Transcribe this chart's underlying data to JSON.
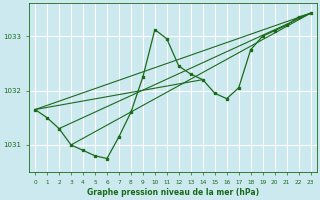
{
  "title": "Graphe pression niveau de la mer (hPa)",
  "bg_color": "#cce9f0",
  "grid_color": "#ffffff",
  "line_color": "#1a6b1a",
  "xlim": [
    -0.5,
    23.5
  ],
  "ylim": [
    1030.5,
    1033.6
  ],
  "yticks": [
    1031,
    1032,
    1033
  ],
  "xticks": [
    0,
    1,
    2,
    3,
    4,
    5,
    6,
    7,
    8,
    9,
    10,
    11,
    12,
    13,
    14,
    15,
    16,
    17,
    18,
    19,
    20,
    21,
    22,
    23
  ],
  "series1_x": [
    0,
    1,
    2,
    3,
    4,
    5,
    6,
    7,
    8,
    9,
    10,
    11,
    12,
    13,
    14,
    15,
    16,
    17,
    18,
    19,
    20,
    21,
    22,
    23
  ],
  "series1_y": [
    1031.65,
    1031.5,
    1031.3,
    1031.0,
    1030.9,
    1030.8,
    1030.75,
    1031.15,
    1031.6,
    1032.25,
    1033.12,
    1032.95,
    1032.45,
    1032.3,
    1032.2,
    1031.95,
    1031.85,
    1032.05,
    1032.75,
    1033.0,
    1033.1,
    1033.2,
    1033.35,
    1033.42
  ],
  "trend1_x": [
    0,
    23
  ],
  "trend1_y": [
    1031.65,
    1033.42
  ],
  "trend2_x": [
    2,
    23
  ],
  "trend2_y": [
    1031.3,
    1033.42
  ],
  "trend3_x": [
    3,
    23
  ],
  "trend3_y": [
    1031.0,
    1033.42
  ],
  "trend4_x": [
    0,
    14
  ],
  "trend4_y": [
    1031.65,
    1032.2
  ]
}
